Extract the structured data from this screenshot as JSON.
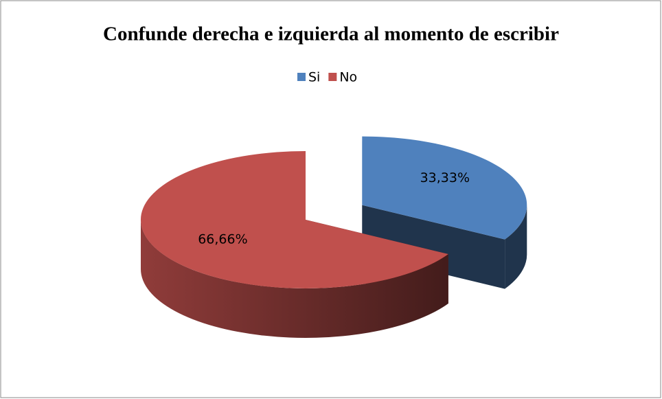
{
  "chart_data": {
    "type": "pie",
    "title": "Confunde derecha e izquierda al momento de escribir",
    "categories": [
      "Si",
      "No"
    ],
    "values": [
      33.33,
      66.66
    ],
    "value_labels": [
      "33,33%",
      "66,66%"
    ],
    "colors": [
      "#4f81bd",
      "#c0504d"
    ],
    "legend": "top"
  }
}
